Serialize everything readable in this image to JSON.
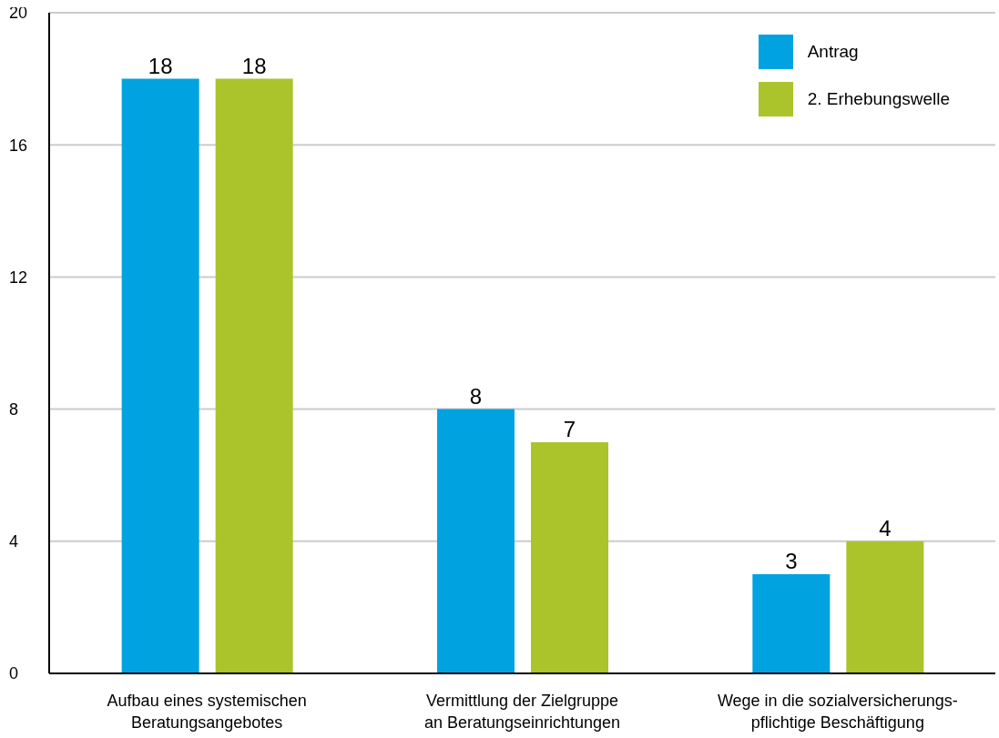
{
  "chart_data": {
    "type": "bar",
    "categories": [
      "Aufbau eines systemischen\nBeratungsangebotes",
      "Vermittlung der Zielgruppe\nan Beratungseinrichtungen",
      "Wege in die sozialversicherungs-\npflichtige Beschäftigung"
    ],
    "series": [
      {
        "name": "Antrag",
        "color": "#00a3e0",
        "values": [
          18,
          8,
          3
        ]
      },
      {
        "name": "2. Erhebungswelle",
        "color": "#abc42b",
        "values": [
          18,
          7,
          4
        ]
      }
    ],
    "ylim": [
      0,
      20
    ],
    "yticks": [
      0,
      4,
      8,
      12,
      16,
      20
    ],
    "grid": "y",
    "legend": "top right",
    "data_labels": true
  }
}
